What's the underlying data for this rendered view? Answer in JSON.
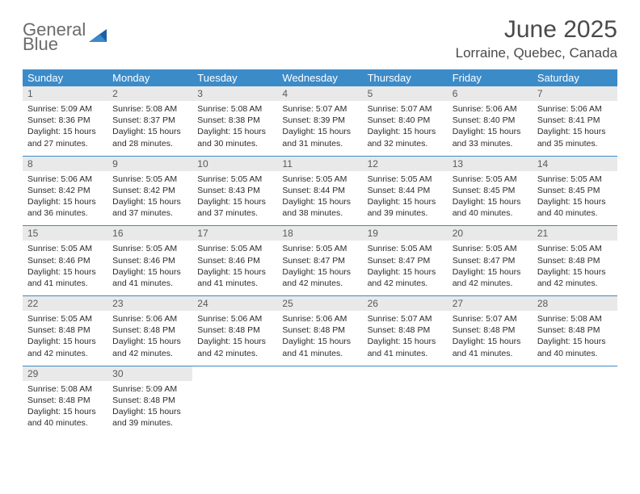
{
  "logo": {
    "line1": "General",
    "line2": "Blue"
  },
  "title": "June 2025",
  "location": "Lorraine, Quebec, Canada",
  "colors": {
    "header_bg": "#3b8bc9",
    "header_fg": "#ffffff",
    "daynum_bg": "#e9e9e9",
    "text": "#2b2b2b",
    "title": "#4a4a4a",
    "logo_gray": "#6b6b6b",
    "logo_blue": "#2f7ac0"
  },
  "day_headers": [
    "Sunday",
    "Monday",
    "Tuesday",
    "Wednesday",
    "Thursday",
    "Friday",
    "Saturday"
  ],
  "weeks": [
    [
      {
        "n": "1",
        "sr": "Sunrise: 5:09 AM",
        "ss": "Sunset: 8:36 PM",
        "d1": "Daylight: 15 hours",
        "d2": "and 27 minutes."
      },
      {
        "n": "2",
        "sr": "Sunrise: 5:08 AM",
        "ss": "Sunset: 8:37 PM",
        "d1": "Daylight: 15 hours",
        "d2": "and 28 minutes."
      },
      {
        "n": "3",
        "sr": "Sunrise: 5:08 AM",
        "ss": "Sunset: 8:38 PM",
        "d1": "Daylight: 15 hours",
        "d2": "and 30 minutes."
      },
      {
        "n": "4",
        "sr": "Sunrise: 5:07 AM",
        "ss": "Sunset: 8:39 PM",
        "d1": "Daylight: 15 hours",
        "d2": "and 31 minutes."
      },
      {
        "n": "5",
        "sr": "Sunrise: 5:07 AM",
        "ss": "Sunset: 8:40 PM",
        "d1": "Daylight: 15 hours",
        "d2": "and 32 minutes."
      },
      {
        "n": "6",
        "sr": "Sunrise: 5:06 AM",
        "ss": "Sunset: 8:40 PM",
        "d1": "Daylight: 15 hours",
        "d2": "and 33 minutes."
      },
      {
        "n": "7",
        "sr": "Sunrise: 5:06 AM",
        "ss": "Sunset: 8:41 PM",
        "d1": "Daylight: 15 hours",
        "d2": "and 35 minutes."
      }
    ],
    [
      {
        "n": "8",
        "sr": "Sunrise: 5:06 AM",
        "ss": "Sunset: 8:42 PM",
        "d1": "Daylight: 15 hours",
        "d2": "and 36 minutes."
      },
      {
        "n": "9",
        "sr": "Sunrise: 5:05 AM",
        "ss": "Sunset: 8:42 PM",
        "d1": "Daylight: 15 hours",
        "d2": "and 37 minutes."
      },
      {
        "n": "10",
        "sr": "Sunrise: 5:05 AM",
        "ss": "Sunset: 8:43 PM",
        "d1": "Daylight: 15 hours",
        "d2": "and 37 minutes."
      },
      {
        "n": "11",
        "sr": "Sunrise: 5:05 AM",
        "ss": "Sunset: 8:44 PM",
        "d1": "Daylight: 15 hours",
        "d2": "and 38 minutes."
      },
      {
        "n": "12",
        "sr": "Sunrise: 5:05 AM",
        "ss": "Sunset: 8:44 PM",
        "d1": "Daylight: 15 hours",
        "d2": "and 39 minutes."
      },
      {
        "n": "13",
        "sr": "Sunrise: 5:05 AM",
        "ss": "Sunset: 8:45 PM",
        "d1": "Daylight: 15 hours",
        "d2": "and 40 minutes."
      },
      {
        "n": "14",
        "sr": "Sunrise: 5:05 AM",
        "ss": "Sunset: 8:45 PM",
        "d1": "Daylight: 15 hours",
        "d2": "and 40 minutes."
      }
    ],
    [
      {
        "n": "15",
        "sr": "Sunrise: 5:05 AM",
        "ss": "Sunset: 8:46 PM",
        "d1": "Daylight: 15 hours",
        "d2": "and 41 minutes."
      },
      {
        "n": "16",
        "sr": "Sunrise: 5:05 AM",
        "ss": "Sunset: 8:46 PM",
        "d1": "Daylight: 15 hours",
        "d2": "and 41 minutes."
      },
      {
        "n": "17",
        "sr": "Sunrise: 5:05 AM",
        "ss": "Sunset: 8:46 PM",
        "d1": "Daylight: 15 hours",
        "d2": "and 41 minutes."
      },
      {
        "n": "18",
        "sr": "Sunrise: 5:05 AM",
        "ss": "Sunset: 8:47 PM",
        "d1": "Daylight: 15 hours",
        "d2": "and 42 minutes."
      },
      {
        "n": "19",
        "sr": "Sunrise: 5:05 AM",
        "ss": "Sunset: 8:47 PM",
        "d1": "Daylight: 15 hours",
        "d2": "and 42 minutes."
      },
      {
        "n": "20",
        "sr": "Sunrise: 5:05 AM",
        "ss": "Sunset: 8:47 PM",
        "d1": "Daylight: 15 hours",
        "d2": "and 42 minutes."
      },
      {
        "n": "21",
        "sr": "Sunrise: 5:05 AM",
        "ss": "Sunset: 8:48 PM",
        "d1": "Daylight: 15 hours",
        "d2": "and 42 minutes."
      }
    ],
    [
      {
        "n": "22",
        "sr": "Sunrise: 5:05 AM",
        "ss": "Sunset: 8:48 PM",
        "d1": "Daylight: 15 hours",
        "d2": "and 42 minutes."
      },
      {
        "n": "23",
        "sr": "Sunrise: 5:06 AM",
        "ss": "Sunset: 8:48 PM",
        "d1": "Daylight: 15 hours",
        "d2": "and 42 minutes."
      },
      {
        "n": "24",
        "sr": "Sunrise: 5:06 AM",
        "ss": "Sunset: 8:48 PM",
        "d1": "Daylight: 15 hours",
        "d2": "and 42 minutes."
      },
      {
        "n": "25",
        "sr": "Sunrise: 5:06 AM",
        "ss": "Sunset: 8:48 PM",
        "d1": "Daylight: 15 hours",
        "d2": "and 41 minutes."
      },
      {
        "n": "26",
        "sr": "Sunrise: 5:07 AM",
        "ss": "Sunset: 8:48 PM",
        "d1": "Daylight: 15 hours",
        "d2": "and 41 minutes."
      },
      {
        "n": "27",
        "sr": "Sunrise: 5:07 AM",
        "ss": "Sunset: 8:48 PM",
        "d1": "Daylight: 15 hours",
        "d2": "and 41 minutes."
      },
      {
        "n": "28",
        "sr": "Sunrise: 5:08 AM",
        "ss": "Sunset: 8:48 PM",
        "d1": "Daylight: 15 hours",
        "d2": "and 40 minutes."
      }
    ],
    [
      {
        "n": "29",
        "sr": "Sunrise: 5:08 AM",
        "ss": "Sunset: 8:48 PM",
        "d1": "Daylight: 15 hours",
        "d2": "and 40 minutes."
      },
      {
        "n": "30",
        "sr": "Sunrise: 5:09 AM",
        "ss": "Sunset: 8:48 PM",
        "d1": "Daylight: 15 hours",
        "d2": "and 39 minutes."
      },
      null,
      null,
      null,
      null,
      null
    ]
  ]
}
